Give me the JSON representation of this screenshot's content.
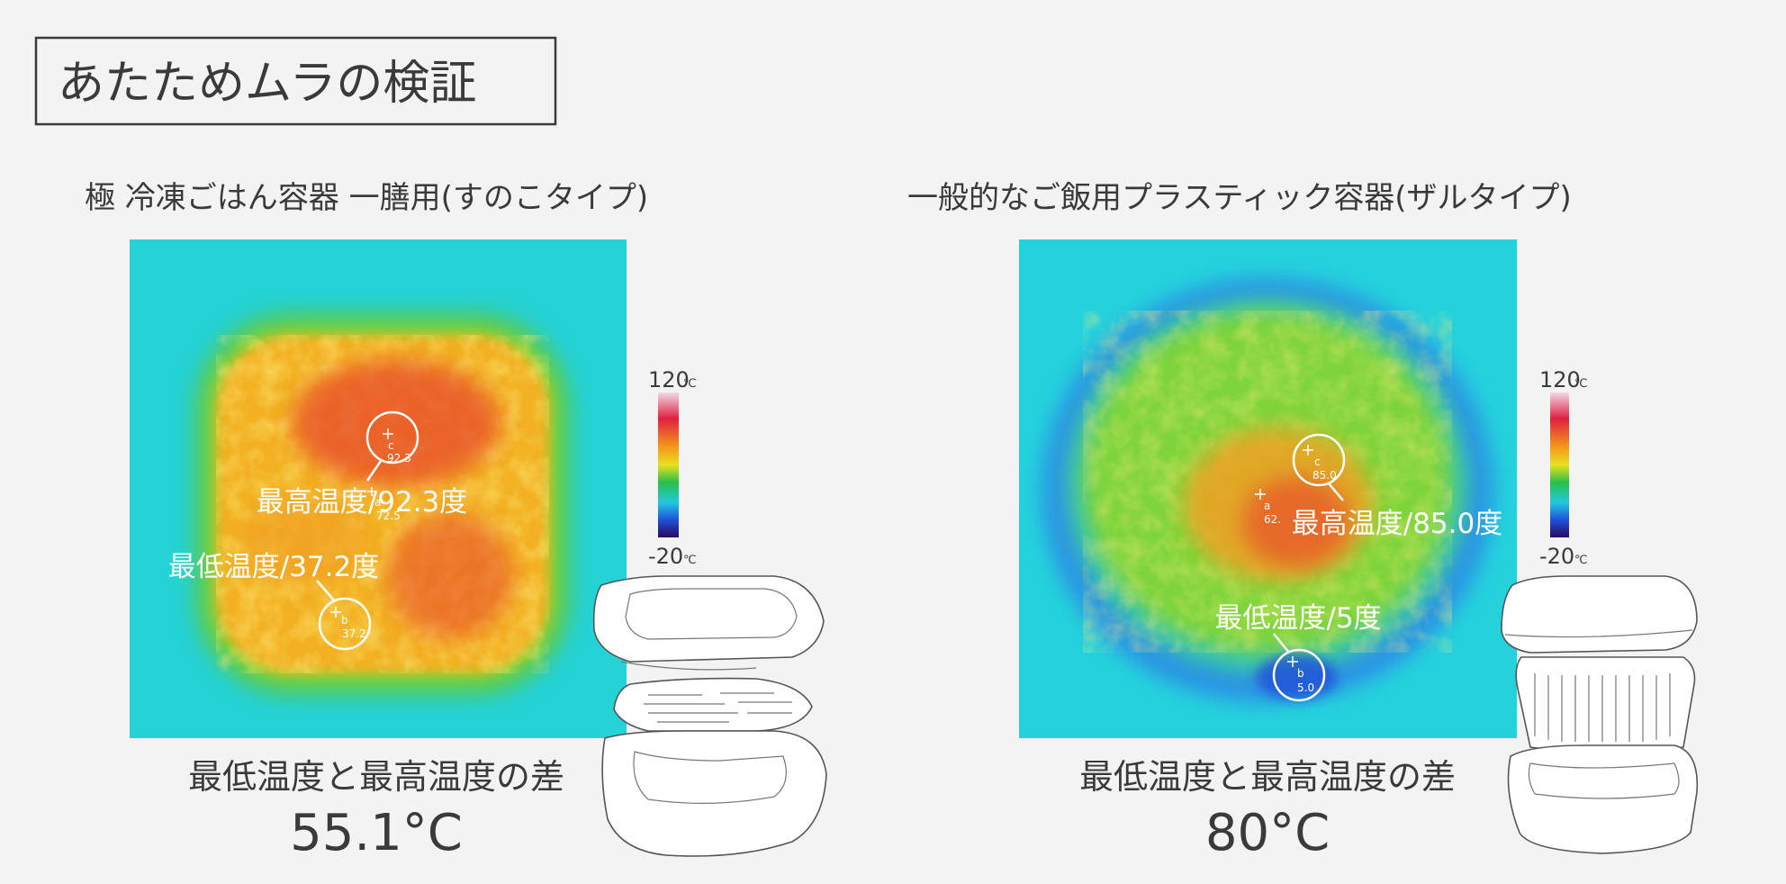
{
  "header": {
    "title": "あたためムラの検証"
  },
  "panels": [
    {
      "heading": "極 冷凍ごはん容器 一膳用(すのこタイプ)",
      "max_label": "最高温度/92.3度",
      "min_label": "最低温度/37.2度",
      "points": [
        {
          "id": "c",
          "value": "92.3"
        },
        {
          "id": "a",
          "value": "72.5"
        },
        {
          "id": "b",
          "value": "37.2"
        }
      ],
      "scale": {
        "max": "120",
        "min": "-20",
        "unit": "℃"
      },
      "diff_label": "最低温度と最高温度の差",
      "diff_value": "55.1°C"
    },
    {
      "heading": "一般的なご飯用プラスティック容器(ザルタイプ)",
      "max_label": "最高温度/85.0度",
      "min_label": "最低温度/5度",
      "points": [
        {
          "id": "c",
          "value": "85.0"
        },
        {
          "id": "a",
          "value": "62."
        },
        {
          "id": "b",
          "value": "5.0"
        }
      ],
      "scale": {
        "max": "120",
        "min": "-20",
        "unit": "℃"
      },
      "diff_label": "最低温度と最高温度の差",
      "diff_value": "80°C"
    }
  ]
}
